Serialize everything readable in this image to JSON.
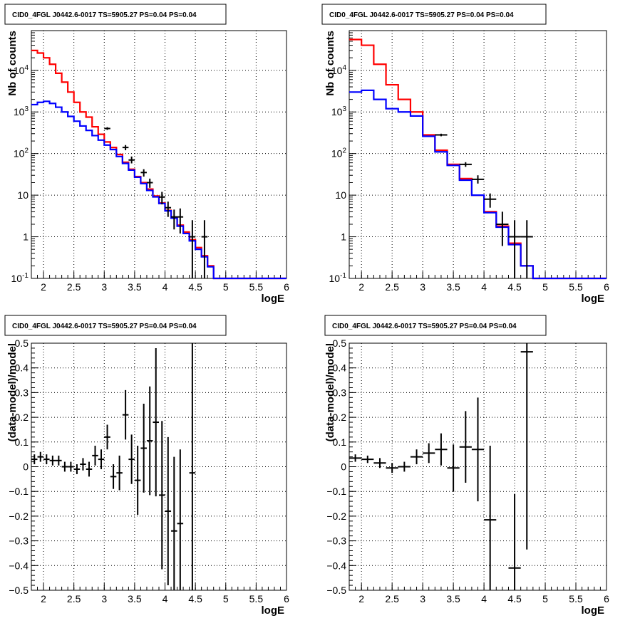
{
  "panels_title": "CID0_4FGL J0442.6-0017 TS=5905.27 PS=0.04 PS=0.04",
  "colors": {
    "model_total": "#ff0000",
    "model_component": "#0000ff",
    "data": "#000000"
  },
  "chart_data": [
    {
      "type": "line",
      "title": "CID0_4FGL J0442.6-0017 TS=5905.27 PS=0.04 PS=0.04",
      "xlabel": "logE",
      "ylabel": "Nb of counts",
      "yscale": "log",
      "xlim": [
        1.8,
        6.0
      ],
      "ylim": [
        0.1,
        90000
      ],
      "grid": true,
      "x_ticks": [
        "2",
        "2.5",
        "3",
        "3.5",
        "4",
        "4.5",
        "5",
        "5.5",
        "6"
      ],
      "y_ticks": [
        "10^-1",
        "1",
        "10",
        "10^2",
        "10^3",
        "10^4"
      ],
      "bin_edges": [
        1.8,
        1.9,
        2.0,
        2.1,
        2.2,
        2.3,
        2.4,
        2.5,
        2.6,
        2.7,
        2.8,
        2.9,
        3.0,
        3.1,
        3.2,
        3.3,
        3.4,
        3.5,
        3.6,
        3.7,
        3.8,
        3.9,
        4.0,
        4.1,
        4.2,
        4.3,
        4.4,
        4.5,
        4.6,
        4.7,
        4.8,
        4.9,
        5.0,
        6.0
      ],
      "series": [
        {
          "values": [
            30000,
            26000,
            20000,
            14000,
            8500,
            5200,
            3000,
            1700,
            1000,
            750,
            440,
            290,
            190,
            140,
            95,
            62,
            42,
            28,
            20,
            14,
            9.5,
            6.5,
            4.3,
            2.9,
            1.9,
            1.3,
            0.85,
            0.55,
            0.35,
            0.2,
            0.1,
            0.1,
            0.1
          ]
        },
        {
          "values": [
            1500,
            1700,
            1800,
            1600,
            1300,
            1000,
            780,
            600,
            460,
            360,
            270,
            210,
            160,
            125,
            85,
            58,
            40,
            27,
            19,
            13,
            9.1,
            6.3,
            4.2,
            2.8,
            1.8,
            1.2,
            0.8,
            0.5,
            0.33,
            0.19,
            0.1,
            0.1,
            0.1
          ]
        }
      ],
      "data_points": [
        {
          "x": 3.05,
          "y": 400,
          "ylo": 370,
          "yhi": 430
        },
        {
          "x": 3.35,
          "y": 140,
          "ylo": 120,
          "yhi": 160
        },
        {
          "x": 3.45,
          "y": 70,
          "ylo": 58,
          "yhi": 85
        },
        {
          "x": 3.65,
          "y": 35,
          "ylo": 28,
          "yhi": 42
        },
        {
          "x": 3.75,
          "y": 20,
          "ylo": 15,
          "yhi": 25
        },
        {
          "x": 3.95,
          "y": 9,
          "ylo": 6,
          "yhi": 12
        },
        {
          "x": 4.05,
          "y": 5,
          "ylo": 3,
          "yhi": 7
        },
        {
          "x": 4.15,
          "y": 3,
          "ylo": 1.5,
          "yhi": 4.5
        },
        {
          "x": 4.25,
          "y": 3,
          "ylo": 1.2,
          "yhi": 4.8
        },
        {
          "x": 4.45,
          "y": 1,
          "ylo": 0.1,
          "yhi": 2.5
        },
        {
          "x": 4.65,
          "y": 1,
          "ylo": 0.1,
          "yhi": 2.5
        }
      ]
    },
    {
      "type": "line",
      "title": "CID0_4FGL J0442.6-0017 TS=5905.27 PS=0.04 PS=0.04",
      "xlabel": "logE",
      "ylabel": "Nb of counts",
      "yscale": "log",
      "xlim": [
        1.8,
        6.0
      ],
      "ylim": [
        0.1,
        90000
      ],
      "grid": true,
      "x_ticks": [
        "2",
        "2.5",
        "3",
        "3.5",
        "4",
        "4.5",
        "5",
        "5.5",
        "6"
      ],
      "y_ticks": [
        "10^-1",
        "1",
        "10",
        "10^2",
        "10^3",
        "10^4"
      ],
      "bin_edges": [
        1.8,
        2.0,
        2.2,
        2.4,
        2.6,
        2.8,
        3.0,
        3.2,
        3.4,
        3.6,
        3.8,
        4.0,
        4.2,
        4.4,
        4.6,
        4.8,
        5.0,
        6.0
      ],
      "series": [
        {
          "values": [
            55000,
            40000,
            14000,
            4500,
            2000,
            1000,
            280,
            120,
            55,
            25,
            10,
            4,
            1.8,
            0.7,
            0.2,
            0.1,
            0.1
          ]
        },
        {
          "values": [
            3000,
            3300,
            2000,
            1200,
            1000,
            800,
            260,
            110,
            52,
            23,
            10,
            3.8,
            1.7,
            0.65,
            0.2,
            0.1,
            0.1
          ]
        }
      ],
      "data_points": [
        {
          "x": 3.3,
          "y": 280,
          "ylo": 260,
          "yhi": 300
        },
        {
          "x": 3.7,
          "y": 55,
          "ylo": 48,
          "yhi": 62
        },
        {
          "x": 3.9,
          "y": 24,
          "ylo": 19,
          "yhi": 30
        },
        {
          "x": 4.1,
          "y": 8,
          "ylo": 5,
          "yhi": 11
        },
        {
          "x": 4.3,
          "y": 2,
          "ylo": 0.6,
          "yhi": 4
        },
        {
          "x": 4.5,
          "y": 1,
          "ylo": 0.1,
          "yhi": 2.5
        },
        {
          "x": 4.7,
          "y": 1,
          "ylo": 0.1,
          "yhi": 2.5
        }
      ]
    },
    {
      "type": "scatter",
      "title": "CID0_4FGL J0442.6-0017 TS=5905.27 PS=0.04 PS=0.04",
      "xlabel": "logE",
      "ylabel": "(data-model)/model",
      "xlim": [
        1.8,
        6.0
      ],
      "ylim": [
        -0.5,
        0.5
      ],
      "grid": true,
      "x_ticks": [
        "2",
        "2.5",
        "3",
        "3.5",
        "4",
        "4.5",
        "5",
        "5.5",
        "6"
      ],
      "y_ticks": [
        "-0.5",
        "-0.4",
        "-0.3",
        "-0.2",
        "-0.1",
        "0",
        "0.1",
        "0.2",
        "0.3",
        "0.4",
        "0.5"
      ],
      "bin_half_width": 0.05,
      "points": [
        {
          "x": 1.85,
          "y": 0.03,
          "err": 0.02
        },
        {
          "x": 1.95,
          "y": 0.04,
          "err": 0.02
        },
        {
          "x": 2.05,
          "y": 0.03,
          "err": 0.02
        },
        {
          "x": 2.15,
          "y": 0.025,
          "err": 0.02
        },
        {
          "x": 2.25,
          "y": 0.025,
          "err": 0.02
        },
        {
          "x": 2.35,
          "y": 0.0,
          "err": 0.02
        },
        {
          "x": 2.45,
          "y": 0.0,
          "err": 0.02
        },
        {
          "x": 2.55,
          "y": -0.01,
          "err": 0.02
        },
        {
          "x": 2.65,
          "y": 0.01,
          "err": 0.025
        },
        {
          "x": 2.75,
          "y": -0.01,
          "err": 0.03
        },
        {
          "x": 2.85,
          "y": 0.045,
          "err": 0.04
        },
        {
          "x": 2.95,
          "y": 0.03,
          "err": 0.04
        },
        {
          "x": 3.05,
          "y": 0.12,
          "err": 0.05
        },
        {
          "x": 3.15,
          "y": -0.04,
          "err": 0.05
        },
        {
          "x": 3.25,
          "y": -0.025,
          "err": 0.07
        },
        {
          "x": 3.35,
          "y": 0.21,
          "err": 0.1
        },
        {
          "x": 3.45,
          "y": 0.03,
          "err": 0.1
        },
        {
          "x": 3.55,
          "y": -0.055,
          "err": 0.14
        },
        {
          "x": 3.65,
          "y": 0.075,
          "err": 0.18
        },
        {
          "x": 3.75,
          "y": 0.105,
          "err": 0.22
        },
        {
          "x": 3.85,
          "y": 0.18,
          "err": 0.3
        },
        {
          "x": 3.95,
          "y": -0.115,
          "err": 0.3
        },
        {
          "x": 4.05,
          "y": -0.18,
          "err": 0.3
        },
        {
          "x": 4.15,
          "y": -0.26,
          "err": 0.3
        },
        {
          "x": 4.25,
          "y": -0.23,
          "err": 0.3
        },
        {
          "x": 4.45,
          "y": -0.025,
          "err": 0.6
        }
      ]
    },
    {
      "type": "scatter",
      "title": "CID0_4FGL J0442.6-0017 TS=5905.27 PS=0.04 PS=0.04",
      "xlabel": "logE",
      "ylabel": "(data-model)/model",
      "xlim": [
        1.8,
        6.0
      ],
      "ylim": [
        -0.5,
        0.5
      ],
      "grid": true,
      "x_ticks": [
        "2",
        "2.5",
        "3",
        "3.5",
        "4",
        "4.5",
        "5",
        "5.5",
        "6"
      ],
      "y_ticks": [
        "-0.5",
        "-0.4",
        "-0.3",
        "-0.2",
        "-0.1",
        "0",
        "0.1",
        "0.2",
        "0.3",
        "0.4",
        "0.5"
      ],
      "bin_half_width": 0.1,
      "points": [
        {
          "x": 1.9,
          "y": 0.035,
          "err": 0.015
        },
        {
          "x": 2.1,
          "y": 0.03,
          "err": 0.015
        },
        {
          "x": 2.3,
          "y": 0.015,
          "err": 0.02
        },
        {
          "x": 2.5,
          "y": -0.005,
          "err": 0.02
        },
        {
          "x": 2.7,
          "y": 0.0,
          "err": 0.02
        },
        {
          "x": 2.9,
          "y": 0.04,
          "err": 0.03
        },
        {
          "x": 3.1,
          "y": 0.055,
          "err": 0.04
        },
        {
          "x": 3.3,
          "y": 0.07,
          "err": 0.065
        },
        {
          "x": 3.5,
          "y": -0.005,
          "err": 0.095
        },
        {
          "x": 3.7,
          "y": 0.08,
          "err": 0.145
        },
        {
          "x": 3.9,
          "y": 0.07,
          "err": 0.21
        },
        {
          "x": 4.1,
          "y": -0.215,
          "err": 0.3
        },
        {
          "x": 4.5,
          "y": -0.41,
          "err": 0.3
        },
        {
          "x": 4.7,
          "y": 0.465,
          "err": 0.8
        }
      ]
    }
  ]
}
